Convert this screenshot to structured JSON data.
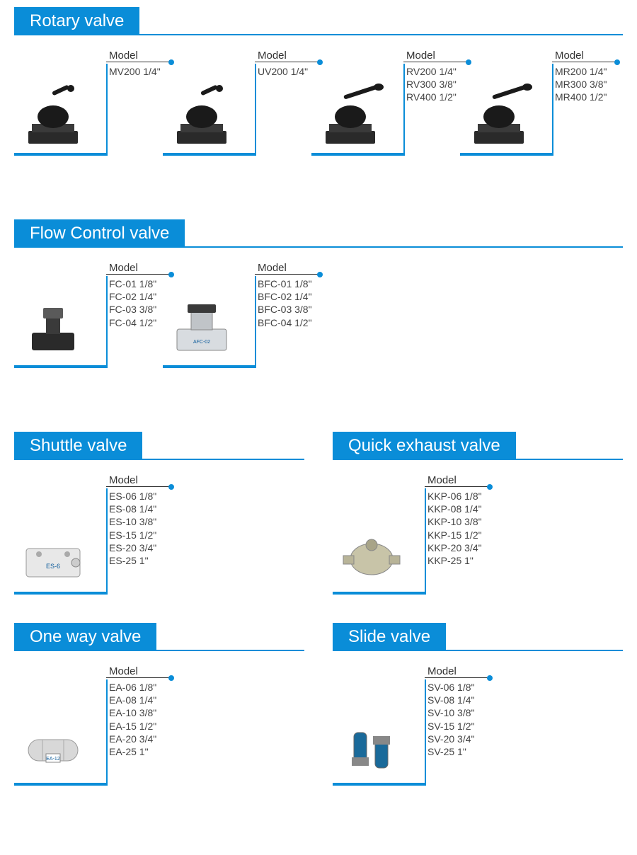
{
  "colors": {
    "accent": "#0a8dd8",
    "bg": "#ffffff",
    "text": "#333333"
  },
  "font": {
    "family": "Arial",
    "title_size": 24,
    "label_size": 15,
    "model_size": 14
  },
  "sections": [
    {
      "title": "Rotary valve",
      "layout": "row",
      "cards": [
        {
          "label": "Model",
          "icon": "rotary1",
          "models": [
            "MV200 1/4\""
          ]
        },
        {
          "label": "Model",
          "icon": "rotary1",
          "models": [
            "UV200 1/4\""
          ]
        },
        {
          "label": "Model",
          "icon": "rotary2",
          "models": [
            "RV200 1/4\"",
            "RV300 3/8\"",
            "RV400 1/2\""
          ]
        },
        {
          "label": "Model",
          "icon": "rotary2",
          "models": [
            "MR200 1/4\"",
            "MR300 3/8\"",
            "MR400 1/2\""
          ]
        }
      ]
    },
    {
      "title": "Flow Control valve",
      "layout": "row",
      "cards": [
        {
          "label": "Model",
          "icon": "flow1",
          "models": [
            "FC-01 1/8\"",
            "FC-02 1/4\"",
            "FC-03 3/8\"",
            "FC-04 1/2\""
          ]
        },
        {
          "label": "Model",
          "icon": "flow2",
          "models": [
            "BFC-01 1/8\"",
            "BFC-02 1/4\"",
            "BFC-03 3/8\"",
            "BFC-04 1/2\""
          ]
        }
      ]
    }
  ],
  "paired": [
    {
      "left": {
        "title": "Shuttle valve",
        "cards": [
          {
            "label": "Model",
            "icon": "shuttle",
            "models": [
              "ES-06 1/8\"",
              "ES-08 1/4\"",
              "ES-10 3/8\"",
              "ES-15 1/2\"",
              "ES-20 3/4\"",
              "ES-25 1\""
            ]
          }
        ]
      },
      "right": {
        "title": "Quick exhaust valve",
        "cards": [
          {
            "label": "Model",
            "icon": "exhaust",
            "models": [
              "KKP-06 1/8\"",
              "KKP-08 1/4\"",
              "KKP-10 3/8\"",
              "KKP-15 1/2\"",
              "KKP-20 3/4\"",
              "KKP-25 1\""
            ]
          }
        ]
      }
    },
    {
      "left": {
        "title": "One way valve",
        "cards": [
          {
            "label": "Model",
            "icon": "oneway",
            "models": [
              "EA-06 1/8\"",
              "EA-08 1/4\"",
              "EA-10 3/8\"",
              "EA-15 1/2\"",
              "EA-20 3/4\"",
              "EA-25 1\""
            ]
          }
        ]
      },
      "right": {
        "title": "Slide valve",
        "cards": [
          {
            "label": "Model",
            "icon": "slide",
            "models": [
              "SV-06 1/8\"",
              "SV-08 1/4\"",
              "SV-10 3/8\"",
              "SV-15 1/2\"",
              "SV-20 3/4\"",
              "SV-25 1\""
            ]
          }
        ]
      }
    }
  ]
}
